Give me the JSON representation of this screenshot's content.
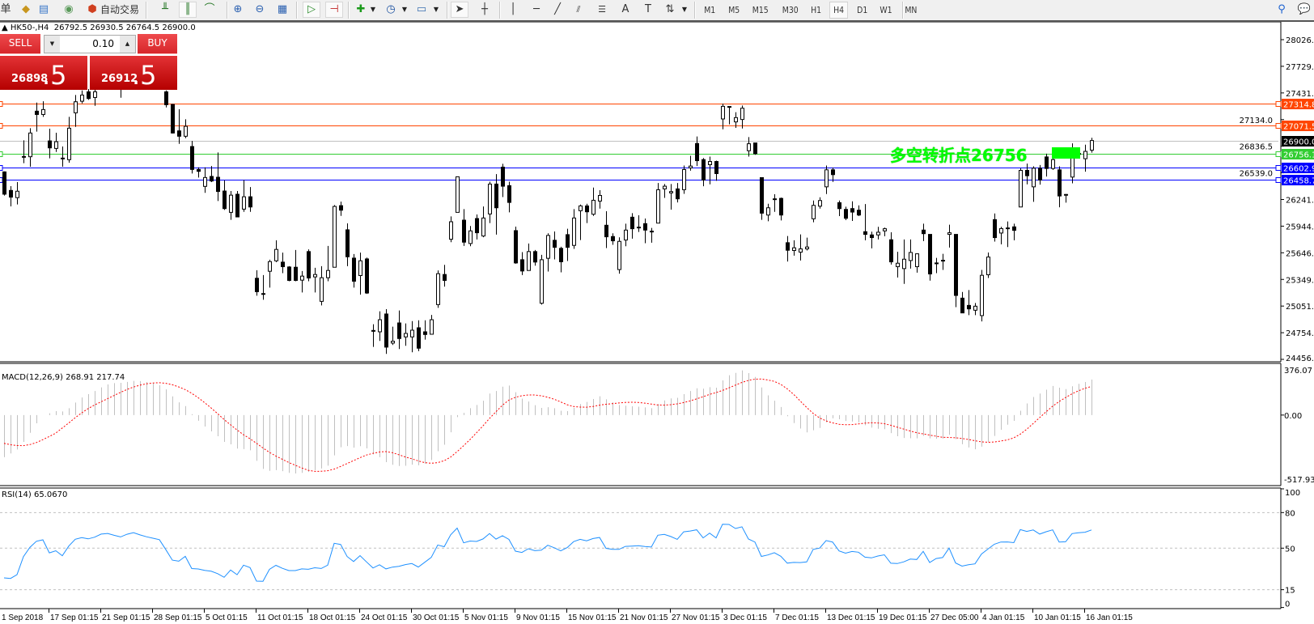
{
  "toolbar": {
    "menu_fragment": "单",
    "auto_trading_label": "自动交易",
    "timeframes": [
      "M1",
      "M5",
      "M15",
      "M30",
      "H1",
      "H4",
      "D1",
      "W1",
      "MN"
    ],
    "active_timeframe": "H4"
  },
  "chart": {
    "title_arrow": "▲",
    "symbol": "HK50-,H4",
    "ohlc_readout": "26792.5 26930.5 26764.5 26900.0"
  },
  "one_click": {
    "sell_label": "SELL",
    "buy_label": "BUY",
    "lot": "0.10",
    "sell_price_main": "26898",
    "sell_price_frac": ".5",
    "buy_price_main": "26912",
    "buy_price_frac": ".5"
  },
  "annotation": {
    "text": "多空转折点26756",
    "color": "#00ff00"
  },
  "chart_data": [
    {
      "type": "candlestick",
      "symbol": "HK50-",
      "timeframe": "H4",
      "ylim": [
        24456.5,
        28026.5
      ],
      "price_ticks": [
        "28026.5",
        "27729.0",
        "27431.5",
        "27134.0",
        "26836.5",
        "26539.0",
        "26241.5",
        "25944.0",
        "25646.5",
        "25349.0",
        "25051.5",
        "24754.0",
        "24456.5"
      ],
      "time_labels": [
        "1 Sep 2018",
        "17 Sep 01:15",
        "21 Sep 01:15",
        "28 Sep 01:15",
        "5 Oct 01:15",
        "11 Oct 01:15",
        "18 Oct 01:15",
        "24 Oct 01:15",
        "30 Oct 01:15",
        "5 Nov 01:15",
        "9 Nov 01:15",
        "15 Nov 01:15",
        "21 Nov 01:15",
        "27 Nov 01:15",
        "3 Dec 01:15",
        "7 Dec 01:15",
        "13 Dec 01:15",
        "19 Dec 01:15",
        "27 Dec 05:00",
        "4 Jan 01:15",
        "10 Jan 01:15",
        "16 Jan 01:15"
      ],
      "hlines": [
        {
          "value": 27314.8,
          "label": "27314.8",
          "color": "#ff4500"
        },
        {
          "value": 27071.5,
          "label": "27071.5",
          "color": "#ff4500"
        },
        {
          "value": 26900.0,
          "label": "26900.0",
          "color": "#c0c0c0",
          "label_bg": "#000000"
        },
        {
          "value": 26756.1,
          "label": "26756.1",
          "color": "#32cd32"
        },
        {
          "value": 26602.9,
          "label": "26602.9",
          "color": "#0000ff"
        },
        {
          "value": 26458.7,
          "label": "26458.7",
          "color": "#0000ff"
        }
      ],
      "candle_format": [
        "open",
        "high",
        "low",
        "close"
      ],
      "candles": [
        [
          26550,
          26556,
          26286,
          26301
        ],
        [
          26343,
          26391,
          26165,
          26268
        ],
        [
          26262,
          26436,
          26186,
          26334
        ],
        [
          26722,
          26902,
          26647,
          26716
        ],
        [
          26719,
          27038,
          26607,
          26984
        ],
        [
          27228,
          27324,
          26999,
          27191
        ],
        [
          27191,
          27339,
          27164,
          27246
        ],
        [
          26896,
          27032,
          26701,
          26818
        ],
        [
          26812,
          26987,
          26773,
          26887
        ],
        [
          26704,
          26833,
          26607,
          26698
        ],
        [
          26686,
          27164,
          26653,
          27038
        ],
        [
          27209,
          27408,
          27053,
          27333
        ],
        [
          27339,
          27459,
          27315,
          27408
        ],
        [
          27444,
          27475,
          27354,
          27369
        ],
        [
          27381,
          27470,
          27288,
          27444
        ],
        [
          27520,
          27600,
          27505,
          27580
        ],
        [
          27580,
          27660,
          27540,
          27610
        ],
        [
          27610,
          27650,
          27530,
          27560
        ],
        [
          27560,
          27600,
          27378,
          27520
        ],
        [
          27520,
          27640,
          27510,
          27620
        ],
        [
          27620,
          27700,
          27590,
          27680
        ],
        [
          27680,
          27720,
          27600,
          27630
        ],
        [
          27630,
          27660,
          27560,
          27590
        ],
        [
          27590,
          27640,
          27530,
          27560
        ],
        [
          27560,
          27580,
          27505,
          27530
        ],
        [
          27444,
          27459,
          27270,
          27300
        ],
        [
          27303,
          27309,
          26978,
          26984
        ],
        [
          27008,
          27249,
          26863,
          26948
        ],
        [
          26948,
          27137,
          26926,
          27059
        ],
        [
          26833,
          26896,
          26532,
          26577
        ],
        [
          26577,
          26601,
          26487,
          26556
        ],
        [
          26388,
          26601,
          26316,
          26487
        ],
        [
          26499,
          26616,
          26436,
          26448
        ],
        [
          26490,
          26767,
          26225,
          26331
        ],
        [
          26336,
          26456,
          26125,
          26140
        ],
        [
          26098,
          26336,
          26014,
          26290
        ],
        [
          26300,
          26336,
          26047,
          26047
        ],
        [
          26134,
          26459,
          26104,
          26272
        ],
        [
          26272,
          26381,
          26104,
          26158
        ],
        [
          25362,
          25452,
          25167,
          25212
        ],
        [
          25191,
          25398,
          25122,
          25185
        ],
        [
          25440,
          25569,
          25257,
          25548
        ],
        [
          25557,
          25786,
          25542,
          25684
        ],
        [
          25542,
          25648,
          25419,
          25491
        ],
        [
          25488,
          25497,
          25329,
          25338
        ],
        [
          25485,
          25678,
          25329,
          25338
        ],
        [
          25341,
          25443,
          25203,
          25386
        ],
        [
          25660,
          25684,
          25329,
          25365
        ],
        [
          25377,
          25479,
          25203,
          25404
        ],
        [
          25104,
          25497,
          25059,
          25368
        ],
        [
          25368,
          25723,
          25329,
          25449
        ],
        [
          25485,
          26179,
          25485,
          26164
        ],
        [
          26173,
          26218,
          26059,
          26122
        ],
        [
          25903,
          25975,
          25497,
          25602
        ],
        [
          25587,
          25633,
          25257,
          25329
        ],
        [
          25392,
          25648,
          25179,
          25557
        ],
        [
          25578,
          25593,
          25188,
          25197
        ],
        [
          24779,
          24848,
          24596,
          24773
        ],
        [
          24764,
          24993,
          24662,
          24899
        ],
        [
          24963,
          25017,
          24518,
          24593
        ],
        [
          24638,
          24821,
          24617,
          24659
        ],
        [
          24863,
          25002,
          24572,
          24689
        ],
        [
          24707,
          24857,
          24608,
          24746
        ],
        [
          24707,
          24884,
          24536,
          24782
        ],
        [
          24809,
          24893,
          24548,
          24581
        ],
        [
          24764,
          24893,
          24677,
          24734
        ],
        [
          24737,
          24953,
          24734,
          24899
        ],
        [
          25068,
          25449,
          25032,
          25413
        ],
        [
          25404,
          25512,
          25269,
          25338
        ],
        [
          25798,
          26053,
          25765,
          25993
        ],
        [
          26098,
          26495,
          26098,
          26495
        ],
        [
          26011,
          26134,
          25723,
          25765
        ],
        [
          25750,
          25945,
          25720,
          25891
        ],
        [
          26029,
          26074,
          25795,
          25870
        ],
        [
          25834,
          26164,
          25820,
          26035
        ],
        [
          26080,
          26440,
          25978,
          26414
        ],
        [
          26414,
          26525,
          25849,
          26149
        ],
        [
          26603,
          26640,
          26269,
          26390
        ],
        [
          26396,
          26440,
          26098,
          26209
        ],
        [
          25894,
          25939,
          25524,
          25533
        ],
        [
          25569,
          25654,
          25398,
          25443
        ],
        [
          25449,
          25750,
          25449,
          25660
        ],
        [
          25660,
          25678,
          25503,
          25543
        ],
        [
          25083,
          25624,
          25068,
          25569
        ],
        [
          25585,
          25864,
          25437,
          25840
        ],
        [
          25786,
          25885,
          25573,
          25708
        ],
        [
          25696,
          25714,
          25428,
          25546
        ],
        [
          25849,
          25915,
          25555,
          25708
        ],
        [
          25729,
          26134,
          25690,
          26035
        ],
        [
          26116,
          26185,
          25788,
          26170
        ],
        [
          26170,
          26194,
          25978,
          26104
        ],
        [
          26077,
          26375,
          26059,
          26233
        ],
        [
          26224,
          26345,
          26140,
          26287
        ],
        [
          25954,
          26110,
          25699,
          25825
        ],
        [
          25828,
          25864,
          25735,
          25780
        ],
        [
          25459,
          25819,
          25413,
          25774
        ],
        [
          25789,
          25972,
          25720,
          25900
        ],
        [
          26044,
          26089,
          25804,
          25915
        ],
        [
          25933,
          26065,
          25879,
          25930
        ],
        [
          25972,
          26029,
          25753,
          25900
        ],
        [
          25888,
          25924,
          25759,
          25885
        ],
        [
          25978,
          26426,
          25978,
          26350
        ],
        [
          26360,
          26414,
          26260,
          26390
        ],
        [
          26315,
          26414,
          26128,
          26330
        ],
        [
          26360,
          26426,
          26209,
          26249
        ],
        [
          26351,
          26621,
          26305,
          26576
        ],
        [
          26594,
          26729,
          26564,
          26615
        ],
        [
          26867,
          26945,
          26615,
          26675
        ],
        [
          26687,
          26705,
          26390,
          26459
        ],
        [
          26630,
          26720,
          26411,
          26666
        ],
        [
          26666,
          26675,
          26450,
          26531
        ],
        [
          27141,
          27312,
          27026,
          27282
        ],
        [
          27280,
          27282,
          27081,
          27276
        ],
        [
          27108,
          27216,
          27041,
          27156
        ],
        [
          27135,
          27291,
          27035,
          27261
        ],
        [
          26786,
          26939,
          26720,
          26864
        ],
        [
          26873,
          26873,
          26741,
          26753
        ],
        [
          26486,
          26486,
          26014,
          26089
        ],
        [
          26068,
          26194,
          25999,
          26149
        ],
        [
          26249,
          26300,
          26104,
          26245
        ],
        [
          26254,
          26263,
          26008,
          26068
        ],
        [
          25759,
          25834,
          25549,
          25675
        ],
        [
          25672,
          25786,
          25614,
          25702
        ],
        [
          25654,
          25852,
          25560,
          25690
        ],
        [
          25690,
          25816,
          25672,
          25711
        ],
        [
          26026,
          26230,
          25987,
          26176
        ],
        [
          26167,
          26266,
          26140,
          26230
        ],
        [
          26383,
          26621,
          26302,
          26573
        ],
        [
          26573,
          26597,
          26438,
          26519
        ],
        [
          26206,
          26230,
          26056,
          26140
        ],
        [
          26131,
          26161,
          26011,
          26032
        ],
        [
          26140,
          26221,
          26002,
          26101
        ],
        [
          26122,
          26176,
          26056,
          26068
        ],
        [
          25882,
          26191,
          25786,
          25852
        ],
        [
          25846,
          25882,
          25696,
          25816
        ],
        [
          25846,
          25936,
          25795,
          25876
        ],
        [
          25891,
          25927,
          25831,
          25915
        ],
        [
          25792,
          25876,
          25515,
          25545
        ],
        [
          25491,
          25657,
          25371,
          25530
        ],
        [
          25470,
          25795,
          25299,
          25575
        ],
        [
          25560,
          25795,
          25470,
          25650
        ],
        [
          25491,
          25641,
          25425,
          25635
        ],
        [
          25900,
          25972,
          25777,
          25860
        ],
        [
          25852,
          25852,
          25335,
          25410
        ],
        [
          25533,
          25590,
          25419,
          25530
        ],
        [
          25563,
          25635,
          25455,
          25560
        ],
        [
          25852,
          25960,
          25705,
          25870
        ],
        [
          25852,
          25852,
          25040,
          25170
        ],
        [
          25140,
          25209,
          24975,
          24975
        ],
        [
          25059,
          25230,
          24950,
          25020
        ],
        [
          25005,
          25086,
          24950,
          25050
        ],
        [
          24945,
          25455,
          24880,
          25395
        ],
        [
          25401,
          25650,
          25365,
          25599
        ],
        [
          26017,
          26086,
          25771,
          25816
        ],
        [
          25867,
          25936,
          25741,
          25917
        ],
        [
          25924,
          25996,
          25711,
          25921
        ],
        [
          25936,
          25972,
          25786,
          25897
        ],
        [
          26158,
          26591,
          26158,
          26567
        ],
        [
          26567,
          26642,
          26411,
          26507
        ],
        [
          26383,
          26612,
          26215,
          26591
        ],
        [
          26591,
          26627,
          26408,
          26459
        ],
        [
          26717,
          26753,
          26498,
          26588
        ],
        [
          26588,
          26822,
          26573,
          26687
        ],
        [
          26573,
          26612,
          26155,
          26281
        ],
        [
          26298,
          26302,
          26206,
          26295
        ],
        [
          26492,
          26869,
          26422,
          26703
        ],
        [
          26755,
          26780,
          26730,
          26755
        ],
        [
          26697,
          26854,
          26552,
          26779
        ],
        [
          26792.5,
          26930.5,
          26764.5,
          26900.0
        ]
      ]
    },
    {
      "type": "bar",
      "indicator": "MACD",
      "label": "MACD(12,26,9) 268.91 217.74",
      "params": [
        12,
        26,
        9
      ],
      "main_value": 268.91,
      "signal_value": 217.74,
      "ylim": [
        -517.93,
        376.07
      ],
      "axis_labels": [
        "376.07",
        "0.00",
        "-517.93"
      ],
      "main_color": "#c0c0c0",
      "signal_color": "#ff0000"
    },
    {
      "type": "line",
      "indicator": "RSI",
      "label": "RSI(14) 65.0670",
      "period": 14,
      "value": 65.067,
      "ylim": [
        0,
        100
      ],
      "levels": [
        80,
        50,
        15
      ],
      "axis_labels": [
        "100",
        "80",
        "50",
        "15",
        "0"
      ],
      "line_color": "#1e90ff"
    }
  ]
}
